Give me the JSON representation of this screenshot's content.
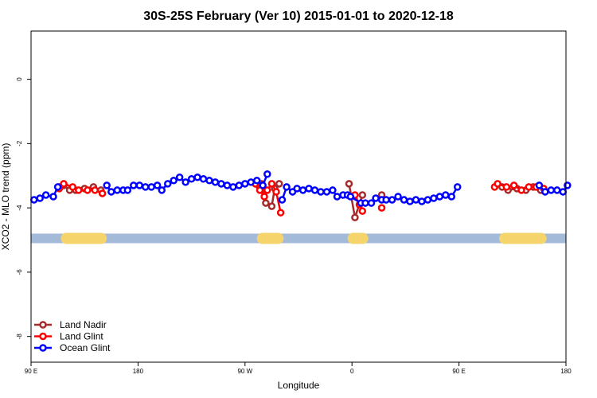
{
  "chart_data": {
    "type": "line",
    "title": "30S-25S February (Ver 10)   2015-01-01 to 2020-12-18",
    "xlabel": "Longitude",
    "ylabel": "XCO2 - MLO trend (ppm)",
    "xlim": [
      90,
      450
    ],
    "ylim": [
      -8.8,
      1.5
    ],
    "x_ticks": [
      {
        "value": 90,
        "label": "90 E"
      },
      {
        "value": 162,
        "label": "180"
      },
      {
        "value": 234,
        "label": "90 W"
      },
      {
        "value": 306,
        "label": "0"
      },
      {
        "value": 378,
        "label": "90 E"
      },
      {
        "value": 450,
        "label": "180"
      }
    ],
    "y_ticks": [
      {
        "value": 0,
        "label": "0"
      },
      {
        "value": -2,
        "label": "-2"
      },
      {
        "value": -4,
        "label": "-4"
      },
      {
        "value": -6,
        "label": "-6"
      },
      {
        "value": -8,
        "label": "-8"
      }
    ],
    "grid": false,
    "legend_position": "bottom-left",
    "land_band": {
      "y": -4.95,
      "ocean_color": "#a3bad8",
      "land_color": "#f5d56b",
      "land_segments": [
        [
          110,
          141
        ],
        [
          242,
          260
        ],
        [
          303,
          317
        ],
        [
          405,
          437
        ]
      ]
    },
    "series": [
      {
        "name": "Land Nadir",
        "color": "#a52a2a",
        "points": [
          [
            109,
            -3.35
          ],
          [
            112,
            -3.3
          ],
          [
            116,
            -3.45
          ],
          [
            120,
            -3.45
          ],
          [
            126,
            -3.4
          ],
          [
            132,
            -3.35
          ],
          [
            137,
            -3.45
          ],
          [
            243,
            -3.3
          ],
          [
            245,
            -3.25
          ],
          [
            248,
            -3.85
          ],
          [
            252,
            -3.95
          ],
          [
            254,
            -3.4
          ],
          [
            257,
            -3.25
          ],
          [
            304,
            -3.25
          ],
          [
            308,
            -4.3
          ],
          [
            313,
            -3.6
          ],
          [
            407,
            -3.35
          ],
          [
            411,
            -3.45
          ],
          [
            417,
            -3.4
          ],
          [
            423,
            -3.45
          ],
          [
            428,
            -3.35
          ],
          [
            433,
            -3.45
          ],
          [
            326,
            -3.6
          ]
        ]
      },
      {
        "name": "Land Glint",
        "color": "#ff0000",
        "points": [
          [
            109,
            -3.4
          ],
          [
            112,
            -3.25
          ],
          [
            118,
            -3.35
          ],
          [
            122,
            -3.45
          ],
          [
            128,
            -3.45
          ],
          [
            133,
            -3.45
          ],
          [
            138,
            -3.55
          ],
          [
            241,
            -3.25
          ],
          [
            244,
            -3.45
          ],
          [
            247,
            -3.65
          ],
          [
            249,
            -3.45
          ],
          [
            252,
            -3.25
          ],
          [
            255,
            -3.5
          ],
          [
            258,
            -4.15
          ],
          [
            308,
            -3.6
          ],
          [
            311,
            -3.9
          ],
          [
            313,
            -4.1
          ],
          [
            402,
            -3.35
          ],
          [
            404,
            -3.25
          ],
          [
            410,
            -3.35
          ],
          [
            415,
            -3.3
          ],
          [
            420,
            -3.45
          ],
          [
            425,
            -3.35
          ],
          [
            430,
            -3.35
          ],
          [
            435,
            -3.4
          ],
          [
            326,
            -4.0
          ]
        ]
      },
      {
        "name": "Ocean Glint",
        "color": "#0000ff",
        "points": [
          [
            92,
            -3.75
          ],
          [
            96,
            -3.7
          ],
          [
            100,
            -3.6
          ],
          [
            105,
            -3.65
          ],
          [
            108,
            -3.35
          ],
          [
            141,
            -3.3
          ],
          [
            144,
            -3.5
          ],
          [
            148,
            -3.45
          ],
          [
            152,
            -3.45
          ],
          [
            155,
            -3.45
          ],
          [
            159,
            -3.3
          ],
          [
            163,
            -3.3
          ],
          [
            167,
            -3.35
          ],
          [
            171,
            -3.35
          ],
          [
            175,
            -3.3
          ],
          [
            178,
            -3.45
          ],
          [
            182,
            -3.25
          ],
          [
            186,
            -3.15
          ],
          [
            190,
            -3.05
          ],
          [
            194,
            -3.2
          ],
          [
            198,
            -3.1
          ],
          [
            202,
            -3.05
          ],
          [
            206,
            -3.1
          ],
          [
            210,
            -3.15
          ],
          [
            214,
            -3.2
          ],
          [
            218,
            -3.25
          ],
          [
            222,
            -3.3
          ],
          [
            226,
            -3.35
          ],
          [
            230,
            -3.3
          ],
          [
            234,
            -3.25
          ],
          [
            238,
            -3.2
          ],
          [
            242,
            -3.15
          ],
          [
            246,
            -3.3
          ],
          [
            249,
            -2.95
          ],
          [
            259,
            -3.75
          ],
          [
            262,
            -3.35
          ],
          [
            266,
            -3.5
          ],
          [
            269,
            -3.4
          ],
          [
            273,
            -3.45
          ],
          [
            277,
            -3.4
          ],
          [
            281,
            -3.45
          ],
          [
            285,
            -3.5
          ],
          [
            289,
            -3.5
          ],
          [
            293,
            -3.45
          ],
          [
            296,
            -3.65
          ],
          [
            300,
            -3.6
          ],
          [
            303,
            -3.6
          ],
          [
            305,
            -3.65
          ],
          [
            312,
            -3.85
          ],
          [
            315,
            -3.85
          ],
          [
            319,
            -3.85
          ],
          [
            322,
            -3.7
          ],
          [
            326,
            -3.75
          ],
          [
            329,
            -3.75
          ],
          [
            333,
            -3.75
          ],
          [
            337,
            -3.65
          ],
          [
            341,
            -3.75
          ],
          [
            345,
            -3.8
          ],
          [
            349,
            -3.75
          ],
          [
            353,
            -3.8
          ],
          [
            357,
            -3.75
          ],
          [
            361,
            -3.7
          ],
          [
            365,
            -3.65
          ],
          [
            369,
            -3.6
          ],
          [
            373,
            -3.65
          ],
          [
            377,
            -3.35
          ],
          [
            432,
            -3.3
          ],
          [
            436,
            -3.5
          ],
          [
            440,
            -3.45
          ],
          [
            444,
            -3.45
          ],
          [
            448,
            -3.5
          ],
          [
            451,
            -3.3
          ]
        ]
      }
    ]
  }
}
